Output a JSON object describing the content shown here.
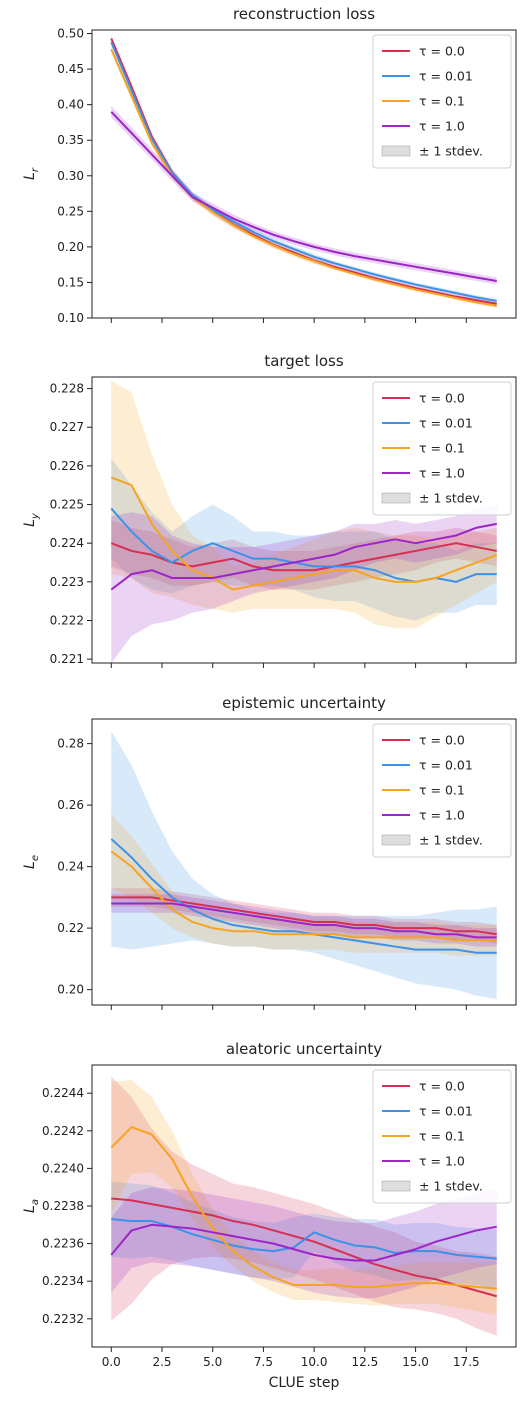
{
  "chart_data": [
    {
      "type": "line",
      "title": "reconstruction loss",
      "ylabel_symbol": "L",
      "ylabel_sub": "r",
      "xlabel": "",
      "ylim": [
        0.1,
        0.505
      ],
      "yticks": [
        "0.10",
        "0.15",
        "0.20",
        "0.25",
        "0.30",
        "0.35",
        "0.40",
        "0.45",
        "0.50"
      ],
      "legend_position": "top-right",
      "legend_band_label": "± 1 stdev.",
      "series": [
        {
          "name": "τ = 0.0",
          "color": "#d62f52",
          "values": [
            0.493,
            0.425,
            0.355,
            0.305,
            0.272,
            0.25,
            0.232,
            0.217,
            0.203,
            0.192,
            0.181,
            0.172,
            0.164,
            0.156,
            0.149,
            0.142,
            0.136,
            0.13,
            0.125,
            0.12
          ],
          "std": [
            0.005,
            0.005,
            0.005,
            0.005,
            0.005,
            0.005,
            0.005,
            0.004,
            0.004,
            0.004,
            0.004,
            0.003,
            0.003,
            0.003,
            0.003,
            0.003,
            0.003,
            0.003,
            0.003,
            0.003
          ]
        },
        {
          "name": "τ = 0.01",
          "color": "#3d92e8",
          "values": [
            0.488,
            0.42,
            0.352,
            0.304,
            0.273,
            0.252,
            0.236,
            0.221,
            0.208,
            0.197,
            0.186,
            0.177,
            0.169,
            0.161,
            0.154,
            0.147,
            0.141,
            0.135,
            0.129,
            0.124
          ],
          "std": [
            0.005,
            0.005,
            0.005,
            0.005,
            0.005,
            0.005,
            0.004,
            0.004,
            0.004,
            0.004,
            0.004,
            0.003,
            0.003,
            0.003,
            0.003,
            0.003,
            0.003,
            0.003,
            0.003,
            0.003
          ]
        },
        {
          "name": "τ = 0.1",
          "color": "#f5a422",
          "values": [
            0.478,
            0.412,
            0.346,
            0.3,
            0.27,
            0.249,
            0.231,
            0.215,
            0.202,
            0.19,
            0.18,
            0.17,
            0.162,
            0.154,
            0.147,
            0.14,
            0.134,
            0.128,
            0.122,
            0.117
          ],
          "std": [
            0.005,
            0.005,
            0.005,
            0.005,
            0.005,
            0.005,
            0.004,
            0.004,
            0.004,
            0.004,
            0.004,
            0.003,
            0.003,
            0.003,
            0.003,
            0.003,
            0.003,
            0.003,
            0.003,
            0.003
          ]
        },
        {
          "name": "τ = 1.0",
          "color": "#9d24c8",
          "values": [
            0.39,
            0.36,
            0.33,
            0.3,
            0.27,
            0.255,
            0.24,
            0.228,
            0.217,
            0.208,
            0.2,
            0.193,
            0.187,
            0.182,
            0.177,
            0.172,
            0.167,
            0.162,
            0.157,
            0.152
          ],
          "std": [
            0.008,
            0.008,
            0.007,
            0.007,
            0.006,
            0.006,
            0.006,
            0.005,
            0.005,
            0.005,
            0.005,
            0.005,
            0.005,
            0.005,
            0.005,
            0.005,
            0.005,
            0.005,
            0.005,
            0.005
          ]
        }
      ]
    },
    {
      "type": "line",
      "title": "target loss",
      "ylabel_symbol": "L",
      "ylabel_sub": "y",
      "xlabel": "",
      "ylim": [
        0.2209,
        0.2283
      ],
      "yticks": [
        "0.221",
        "0.222",
        "0.223",
        "0.224",
        "0.225",
        "0.226",
        "0.227",
        "0.228"
      ],
      "legend_position": "top-right",
      "legend_band_label": "± 1 stdev.",
      "series": [
        {
          "name": "τ = 0.0",
          "color": "#d62f52",
          "values": [
            0.224,
            0.2238,
            0.2237,
            0.2235,
            0.2234,
            0.2235,
            0.2236,
            0.2234,
            0.2233,
            0.2233,
            0.2233,
            0.2234,
            0.2235,
            0.2236,
            0.2237,
            0.2238,
            0.2239,
            0.224,
            0.2239,
            0.2238
          ],
          "std": [
            0.0006,
            0.0006,
            0.0006,
            0.0006,
            0.0005,
            0.0005,
            0.0005,
            0.0005,
            0.0005,
            0.0005,
            0.0005,
            0.0005,
            0.0005,
            0.0005,
            0.0005,
            0.0005,
            0.0004,
            0.0004,
            0.0004,
            0.0004
          ]
        },
        {
          "name": "τ = 0.01",
          "color": "#3d92e8",
          "values": [
            0.2249,
            0.2243,
            0.2238,
            0.2235,
            0.2238,
            0.224,
            0.2238,
            0.2236,
            0.2236,
            0.2235,
            0.2234,
            0.2234,
            0.2234,
            0.2233,
            0.2231,
            0.223,
            0.2231,
            0.223,
            0.2232,
            0.2232
          ],
          "std": [
            0.0013,
            0.0012,
            0.001,
            0.0008,
            0.0009,
            0.001,
            0.0009,
            0.0007,
            0.0007,
            0.0007,
            0.0008,
            0.0009,
            0.0009,
            0.001,
            0.001,
            0.001,
            0.0009,
            0.0008,
            0.0008,
            0.0008
          ]
        },
        {
          "name": "τ = 0.1",
          "color": "#f5a422",
          "values": [
            0.2257,
            0.2255,
            0.2245,
            0.2238,
            0.2233,
            0.2231,
            0.2228,
            0.2229,
            0.223,
            0.2231,
            0.2232,
            0.2233,
            0.2233,
            0.2231,
            0.223,
            0.223,
            0.2231,
            0.2233,
            0.2235,
            0.2237
          ],
          "std": [
            0.0025,
            0.0024,
            0.0018,
            0.0012,
            0.0009,
            0.0008,
            0.0006,
            0.0006,
            0.0007,
            0.0008,
            0.0009,
            0.001,
            0.0011,
            0.0012,
            0.0012,
            0.0012,
            0.001,
            0.0009,
            0.0008,
            0.0007
          ]
        },
        {
          "name": "τ = 1.0",
          "color": "#9d24c8",
          "values": [
            0.2228,
            0.2232,
            0.2233,
            0.2231,
            0.2231,
            0.2231,
            0.2232,
            0.2233,
            0.2234,
            0.2235,
            0.2236,
            0.2237,
            0.2239,
            0.224,
            0.2241,
            0.224,
            0.2241,
            0.2242,
            0.2244,
            0.2245
          ],
          "std": [
            0.0019,
            0.0016,
            0.0014,
            0.0011,
            0.0009,
            0.0008,
            0.0007,
            0.0006,
            0.0006,
            0.0006,
            0.0006,
            0.0006,
            0.0006,
            0.0005,
            0.0005,
            0.0005,
            0.0005,
            0.0005,
            0.0005,
            0.0005
          ]
        }
      ]
    },
    {
      "type": "line",
      "title": "epistemic uncertainty",
      "ylabel_symbol": "L",
      "ylabel_sub": "e",
      "xlabel": "",
      "ylim": [
        0.195,
        0.288
      ],
      "yticks": [
        "0.20",
        "0.22",
        "0.24",
        "0.26",
        "0.28"
      ],
      "legend_position": "top-right",
      "legend_band_label": "± 1 stdev.",
      "series": [
        {
          "name": "τ = 0.0",
          "color": "#d62f52",
          "values": [
            0.23,
            0.23,
            0.23,
            0.229,
            0.228,
            0.227,
            0.226,
            0.225,
            0.224,
            0.223,
            0.222,
            0.222,
            0.221,
            0.221,
            0.22,
            0.22,
            0.22,
            0.219,
            0.219,
            0.218
          ],
          "std": [
            0.003,
            0.003,
            0.003,
            0.003,
            0.003,
            0.003,
            0.003,
            0.003,
            0.003,
            0.003,
            0.003,
            0.003,
            0.003,
            0.003,
            0.003,
            0.003,
            0.003,
            0.003,
            0.003,
            0.003
          ]
        },
        {
          "name": "τ = 0.01",
          "color": "#3d92e8",
          "values": [
            0.249,
            0.243,
            0.236,
            0.23,
            0.226,
            0.223,
            0.221,
            0.22,
            0.219,
            0.219,
            0.218,
            0.217,
            0.216,
            0.215,
            0.214,
            0.213,
            0.213,
            0.213,
            0.212,
            0.212
          ],
          "std": [
            0.035,
            0.03,
            0.022,
            0.015,
            0.01,
            0.008,
            0.007,
            0.006,
            0.006,
            0.006,
            0.006,
            0.007,
            0.008,
            0.009,
            0.01,
            0.011,
            0.012,
            0.013,
            0.014,
            0.015
          ]
        },
        {
          "name": "τ = 0.1",
          "color": "#f5a422",
          "values": [
            0.245,
            0.24,
            0.233,
            0.226,
            0.222,
            0.22,
            0.219,
            0.219,
            0.218,
            0.218,
            0.218,
            0.218,
            0.217,
            0.217,
            0.217,
            0.217,
            0.217,
            0.216,
            0.216,
            0.216
          ],
          "std": [
            0.012,
            0.01,
            0.008,
            0.006,
            0.005,
            0.005,
            0.005,
            0.005,
            0.005,
            0.005,
            0.005,
            0.005,
            0.005,
            0.005,
            0.005,
            0.005,
            0.005,
            0.005,
            0.005,
            0.005
          ]
        },
        {
          "name": "τ = 1.0",
          "color": "#9d24c8",
          "values": [
            0.228,
            0.228,
            0.228,
            0.228,
            0.227,
            0.226,
            0.225,
            0.224,
            0.223,
            0.222,
            0.221,
            0.221,
            0.22,
            0.22,
            0.219,
            0.219,
            0.218,
            0.218,
            0.217,
            0.217
          ],
          "std": [
            0.003,
            0.003,
            0.003,
            0.003,
            0.003,
            0.003,
            0.003,
            0.003,
            0.003,
            0.003,
            0.003,
            0.003,
            0.003,
            0.003,
            0.003,
            0.003,
            0.003,
            0.003,
            0.003,
            0.003
          ]
        }
      ]
    },
    {
      "type": "line",
      "title": "aleatoric uncertainty",
      "ylabel_symbol": "L",
      "ylabel_sub": "a",
      "xlabel": "CLUE step",
      "xticks": [
        "0.0",
        "2.5",
        "5.0",
        "7.5",
        "10.0",
        "12.5",
        "15.0",
        "17.5"
      ],
      "ylim": [
        0.22305,
        0.22455
      ],
      "yticks": [
        "0.2232",
        "0.2234",
        "0.2236",
        "0.2238",
        "0.2240",
        "0.2242",
        "0.2244"
      ],
      "legend_position": "top-right",
      "legend_band_label": "± 1 stdev.",
      "series": [
        {
          "name": "τ = 0.0",
          "color": "#d62f52",
          "values": [
            0.22384,
            0.22383,
            0.22381,
            0.22379,
            0.22377,
            0.22375,
            0.22372,
            0.2237,
            0.22367,
            0.22364,
            0.22361,
            0.22357,
            0.22353,
            0.22349,
            0.22346,
            0.22343,
            0.22341,
            0.22338,
            0.22335,
            0.22332
          ],
          "std": [
            0.00065,
            0.00055,
            0.0004,
            0.0003,
            0.00025,
            0.00022,
            0.0002,
            0.0002,
            0.0002,
            0.0002,
            0.0002,
            0.0002,
            0.0002,
            0.0002,
            0.0002,
            0.00018,
            0.00018,
            0.00018,
            0.0002,
            0.00021
          ]
        },
        {
          "name": "τ = 0.01",
          "color": "#3d92e8",
          "values": [
            0.22373,
            0.22372,
            0.22372,
            0.22369,
            0.22365,
            0.22362,
            0.22359,
            0.22357,
            0.22356,
            0.22358,
            0.22366,
            0.22362,
            0.22359,
            0.22358,
            0.22355,
            0.22356,
            0.22356,
            0.22354,
            0.22353,
            0.22352
          ],
          "std": [
            0.0002,
            0.0002,
            0.00019,
            0.00018,
            0.00017,
            0.00016,
            0.00015,
            0.00015,
            0.00015,
            0.00016,
            0.0001,
            0.00012,
            0.00014,
            0.00015,
            0.00015,
            0.00015,
            0.00015,
            0.00015,
            0.00015,
            0.00016
          ]
        },
        {
          "name": "τ = 0.1",
          "color": "#f5a422",
          "values": [
            0.22411,
            0.22422,
            0.22418,
            0.22405,
            0.22385,
            0.22368,
            0.22356,
            0.22348,
            0.22342,
            0.22338,
            0.22338,
            0.22338,
            0.22337,
            0.22337,
            0.22338,
            0.22339,
            0.22339,
            0.22338,
            0.22337,
            0.22336
          ],
          "std": [
            0.00035,
            0.00025,
            0.0002,
            0.00015,
            0.00012,
            0.0001,
            8e-05,
            8e-05,
            8e-05,
            8e-05,
            8e-05,
            9e-05,
            9e-05,
            0.0001,
            0.0001,
            0.00011,
            0.00011,
            0.00012,
            0.00013,
            0.00014
          ]
        },
        {
          "name": "τ = 1.0",
          "color": "#9d24c8",
          "values": [
            0.22354,
            0.22367,
            0.2237,
            0.22369,
            0.22368,
            0.22366,
            0.22364,
            0.22362,
            0.2236,
            0.22357,
            0.22354,
            0.22352,
            0.22351,
            0.22351,
            0.22354,
            0.22357,
            0.22361,
            0.22364,
            0.22367,
            0.22369
          ],
          "std": [
            0.0002,
            0.0002,
            0.0002,
            0.0002,
            0.0002,
            0.0002,
            0.0002,
            0.0002,
            0.0002,
            0.0002,
            0.0002,
            0.0002,
            0.0002,
            0.0002,
            0.0002,
            0.0002,
            0.0002,
            0.0002,
            0.0002,
            0.0002
          ]
        }
      ]
    }
  ]
}
